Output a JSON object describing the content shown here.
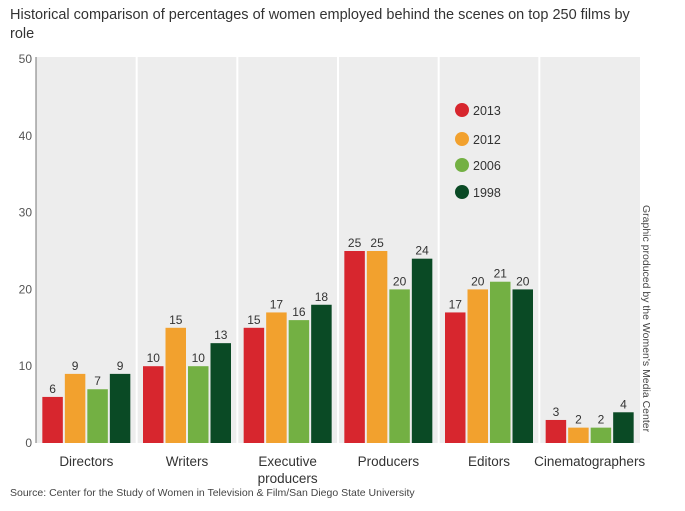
{
  "chart_data": {
    "type": "bar",
    "title": "Historical comparison of percentages of women employed behind the scenes on top 250 films by role",
    "categories": [
      "Directors",
      "Writers",
      "Executive producers",
      "Producers",
      "Editors",
      "Cinematographers"
    ],
    "series": [
      {
        "name": "2013",
        "color": "#d7262e",
        "values": [
          6,
          10,
          15,
          25,
          17,
          3
        ]
      },
      {
        "name": "2012",
        "color": "#f2a12e",
        "values": [
          9,
          15,
          17,
          25,
          20,
          2
        ]
      },
      {
        "name": "2006",
        "color": "#73b043",
        "values": [
          7,
          10,
          16,
          20,
          21,
          2
        ]
      },
      {
        "name": "1998",
        "color": "#0a4a25",
        "values": [
          9,
          13,
          18,
          24,
          20,
          4
        ]
      }
    ],
    "ylim": [
      0,
      50
    ],
    "yticks": [
      0,
      10,
      20,
      30,
      40,
      50
    ],
    "xlabel": "",
    "ylabel": "",
    "grid": false,
    "legend_position": "top-right",
    "background_color": "#ededed",
    "source": "Source: Center for the Study of Women in Television & Film/San Diego State University",
    "side_note": "Graphic produced by the Women's Media Center"
  }
}
